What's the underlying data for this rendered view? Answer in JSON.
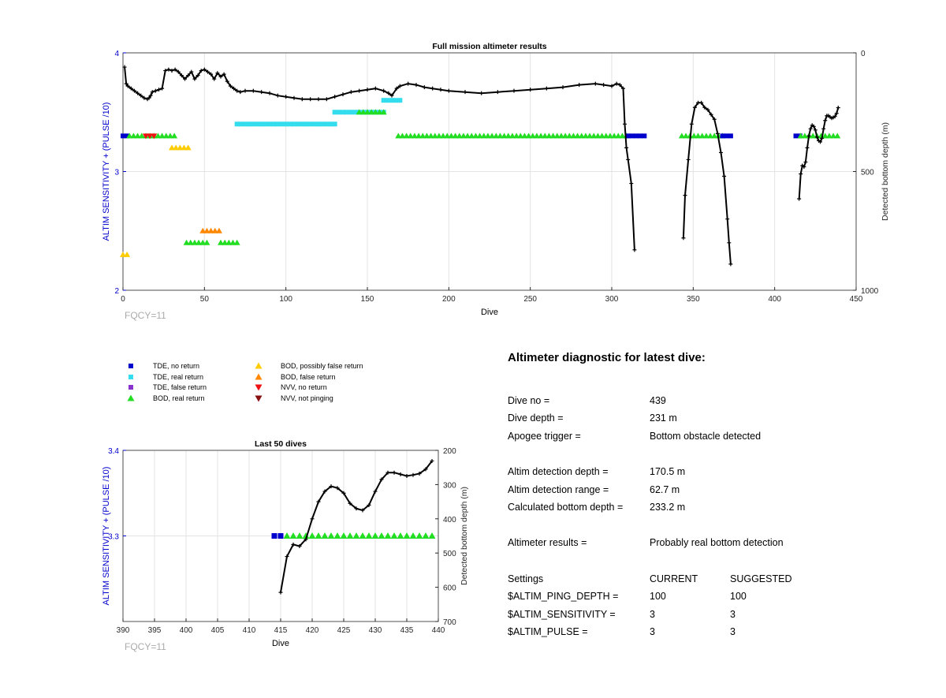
{
  "chart_data": [
    {
      "type": "scatter",
      "title": "Full mission altimeter results",
      "xlabel": "Dive",
      "ylabel": "ALTIM SENSITIVITY + (PULSE /10)",
      "y2label": "Detected bottom depth (m)",
      "xlim": [
        0,
        450
      ],
      "ylim": [
        2,
        4
      ],
      "y2lim": [
        1000,
        0
      ],
      "xticks": [
        "0",
        "50",
        "100",
        "150",
        "200",
        "250",
        "300",
        "350",
        "400",
        "450"
      ],
      "yticks": [
        "2",
        "3",
        "4"
      ],
      "y2ticks": [
        "0",
        "500",
        "1000"
      ],
      "footnote": "FQCY=11",
      "grid": true,
      "depth_series": [
        {
          "x": [
            1,
            2,
            3,
            5,
            7,
            9,
            11,
            13,
            15,
            16,
            17,
            18,
            20,
            22,
            24,
            26,
            28,
            30,
            32,
            34,
            36,
            38,
            40,
            42,
            44,
            46,
            48,
            50,
            52,
            54,
            56,
            58,
            60,
            62,
            64,
            66,
            68,
            70,
            72,
            75,
            80,
            85,
            90,
            95,
            100,
            105,
            110,
            115,
            120,
            125,
            130,
            135,
            140,
            145,
            150,
            155,
            160,
            163,
            165,
            168,
            170,
            175,
            180,
            185,
            190,
            195,
            200,
            210,
            220,
            230,
            240,
            250,
            260,
            270,
            280,
            290,
            295,
            300,
            303,
            305,
            307,
            308,
            309,
            310,
            312,
            314
          ],
          "y": [
            60,
            130,
            140,
            150,
            160,
            170,
            180,
            190,
            195,
            190,
            180,
            165,
            160,
            155,
            150,
            75,
            70,
            75,
            70,
            80,
            95,
            110,
            95,
            80,
            110,
            95,
            75,
            70,
            80,
            90,
            110,
            85,
            100,
            90,
            120,
            140,
            150,
            160,
            165,
            160,
            160,
            165,
            170,
            180,
            185,
            190,
            195,
            195,
            195,
            195,
            185,
            175,
            165,
            160,
            155,
            150,
            160,
            170,
            180,
            150,
            140,
            130,
            135,
            145,
            150,
            155,
            160,
            165,
            170,
            165,
            160,
            155,
            150,
            145,
            135,
            130,
            135,
            140,
            130,
            135,
            150,
            300,
            400,
            450,
            550,
            830
          ]
        },
        {
          "x": [
            344,
            345,
            347,
            349,
            351,
            353,
            355,
            357,
            359,
            361,
            363,
            365,
            367,
            369,
            371,
            372,
            373
          ],
          "y": [
            780,
            600,
            450,
            300,
            230,
            210,
            210,
            230,
            240,
            260,
            280,
            340,
            420,
            520,
            700,
            800,
            890
          ]
        },
        {
          "x": [
            415,
            416,
            417,
            418,
            419,
            420,
            421,
            422,
            423,
            424,
            425,
            426,
            427,
            428,
            429,
            430,
            431,
            432,
            433,
            434,
            435,
            436,
            437,
            438,
            439
          ],
          "y": [
            615,
            510,
            475,
            480,
            460,
            400,
            350,
            320,
            305,
            310,
            325,
            355,
            370,
            375,
            360,
            320,
            285,
            265,
            265,
            270,
            275,
            272,
            268,
            255,
            231
          ]
        }
      ],
      "markers": [
        {
          "series": "TDE, no return",
          "x0": 0,
          "x1": 3,
          "y": 3.3
        },
        {
          "series": "BOD, real return",
          "x0": 4,
          "x1": 32,
          "y": 3.3
        },
        {
          "series": "NVV, no return",
          "x0": 14,
          "x1": 20,
          "y": 3.3
        },
        {
          "series": "BOD, possibly false return",
          "x0": 30,
          "x1": 42,
          "y": 3.2
        },
        {
          "series": "TDE, real return",
          "x0": 70,
          "x1": 130,
          "y": 3.4
        },
        {
          "series": "TDE, real return",
          "x0": 130,
          "x1": 160,
          "y": 3.5
        },
        {
          "series": "BOD, real return",
          "x0": 145,
          "x1": 160,
          "y": 3.5
        },
        {
          "series": "TDE, real return",
          "x0": 160,
          "x1": 172,
          "y": 3.6
        },
        {
          "series": "BOD, real return",
          "x0": 169,
          "x1": 310,
          "y": 3.3
        },
        {
          "series": "TDE, no return",
          "x0": 310,
          "x1": 322,
          "y": 3.3
        },
        {
          "series": "BOD, real return",
          "x0": 343,
          "x1": 368,
          "y": 3.3
        },
        {
          "series": "TDE, no return",
          "x0": 368,
          "x1": 373,
          "y": 3.3
        },
        {
          "series": "TDE, no return",
          "x0": 413,
          "x1": 416,
          "y": 3.3
        },
        {
          "series": "BOD, real return",
          "x0": 416,
          "x1": 439,
          "y": 3.3
        },
        {
          "series": "BOD, real return",
          "x0": 39,
          "x1": 52,
          "y": 2.4
        },
        {
          "series": "BOD, false return",
          "x0": 49,
          "x1": 60,
          "y": 2.5
        },
        {
          "series": "BOD, real return",
          "x0": 60,
          "x1": 72,
          "y": 2.4
        },
        {
          "series": "BOD, possibly false return",
          "x0": 0,
          "x1": 3,
          "y": 2.3
        }
      ]
    },
    {
      "type": "scatter",
      "title": "Last 50 dives",
      "xlabel": "Dive",
      "ylabel": "ALTIM SENSITIVITY + (PULSE /10)",
      "y2label": "Detected bottom depth (m)",
      "xlim": [
        390,
        440
      ],
      "ylim": [
        3.2,
        3.4
      ],
      "y2lim": [
        700,
        200
      ],
      "xticks": [
        "390",
        "395",
        "400",
        "405",
        "410",
        "415",
        "420",
        "425",
        "430",
        "435",
        "440"
      ],
      "yticks": [
        "3.3",
        "3.4"
      ],
      "y2ticks": [
        "200",
        "300",
        "400",
        "500",
        "600",
        "700"
      ],
      "footnote": "FQCY=11",
      "grid": true,
      "depth_series": [
        {
          "x": [
            415,
            416,
            417,
            418,
            419,
            420,
            421,
            422,
            423,
            424,
            425,
            426,
            427,
            428,
            429,
            430,
            431,
            432,
            433,
            434,
            435,
            436,
            437,
            438,
            439
          ],
          "y": [
            615,
            510,
            475,
            480,
            460,
            400,
            350,
            320,
            305,
            310,
            325,
            355,
            370,
            375,
            360,
            320,
            285,
            265,
            265,
            270,
            275,
            272,
            268,
            255,
            231
          ]
        }
      ],
      "markers": [
        {
          "series": "TDE, no return",
          "x": [
            414,
            415
          ],
          "y": 3.3
        },
        {
          "series": "BOD, real return",
          "x": [
            416,
            417,
            418,
            419,
            420,
            421,
            422,
            423,
            424,
            425,
            426,
            427,
            428,
            429,
            430,
            431,
            432,
            433,
            434,
            435,
            436,
            437,
            438,
            439
          ],
          "y": 3.3
        }
      ]
    }
  ],
  "legend": [
    {
      "label": "TDE, no return",
      "shape": "square",
      "color": "#0000cc"
    },
    {
      "label": "TDE, real return",
      "shape": "square",
      "color": "#33ddee"
    },
    {
      "label": "TDE, false return",
      "shape": "square",
      "color": "#8833cc"
    },
    {
      "label": "BOD, real return",
      "shape": "triangle-up",
      "color": "#22dd22"
    },
    {
      "label": "BOD, possibly false return",
      "shape": "triangle-up",
      "color": "#ffcc00"
    },
    {
      "label": "BOD, false return",
      "shape": "triangle-up",
      "color": "#ff8800"
    },
    {
      "label": "NVV, no return",
      "shape": "triangle-down",
      "color": "#ee1111"
    },
    {
      "label": "NVV, not pinging",
      "shape": "triangle-down",
      "color": "#881111"
    }
  ],
  "diagnostic": {
    "title": "Altimeter diagnostic for latest dive:",
    "rows": [
      {
        "k": "Dive no =",
        "v": "439"
      },
      {
        "k": "Dive depth =",
        "v": "231 m"
      },
      {
        "k": "Apogee trigger =",
        "v": "Bottom obstacle detected"
      },
      {
        "k": "Altim detection depth =",
        "v": "170.5 m"
      },
      {
        "k": "Altim detection range =",
        "v": "62.7 m"
      },
      {
        "k": "Calculated bottom depth =",
        "v": "233.2 m"
      },
      {
        "k": "Altimeter results =",
        "v": "Probably real bottom detection"
      },
      {
        "k": "Settings",
        "v": "CURRENT",
        "s": "SUGGESTED"
      },
      {
        "k": "$ALTIM_PING_DEPTH =",
        "v": "100",
        "s": "100"
      },
      {
        "k": "$ALTIM_SENSITIVITY =",
        "v": "3",
        "s": "3"
      },
      {
        "k": "$ALTIM_PULSE =",
        "v": "3",
        "s": "3"
      }
    ]
  },
  "colors": {
    "axis_left": "#0000cc",
    "footnote": "#aaaaaa",
    "grid": "#e3e3e3",
    "depth_line": "#000000"
  }
}
